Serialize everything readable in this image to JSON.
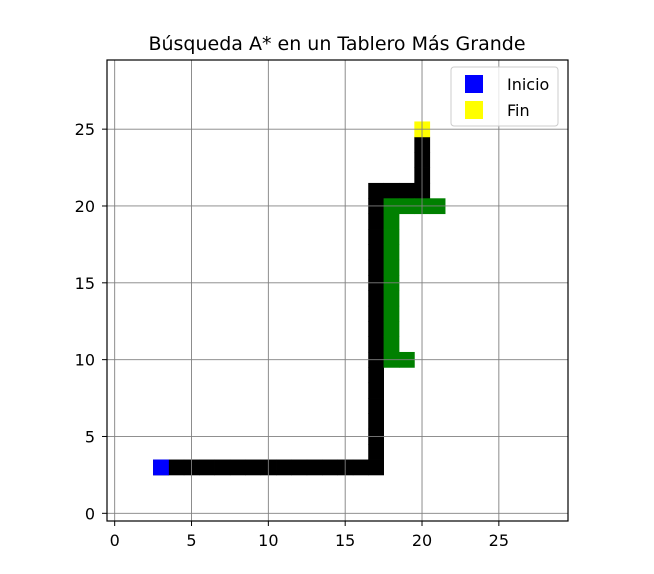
{
  "chart_data": {
    "type": "heatmap",
    "title": "Búsqueda A* en un Tablero Más Grande",
    "xlabel": "",
    "ylabel": "",
    "xlim": [
      -0.5,
      29.5
    ],
    "ylim": [
      29.5,
      -0.5
    ],
    "y_inverted": true,
    "grid": true,
    "legend_position": "upper-right",
    "x_ticks": [
      0,
      5,
      10,
      15,
      20,
      25
    ],
    "y_ticks": [
      0,
      5,
      10,
      15,
      20,
      25
    ],
    "x_tick_labels": [
      "0",
      "5",
      "10",
      "15",
      "20",
      "25"
    ],
    "y_tick_labels": [
      "0",
      "5",
      "10",
      "15",
      "20",
      "25"
    ],
    "colors": {
      "obstacle": "#000000",
      "explored": "#008000",
      "start": "#0000ff",
      "end": "#ffff00",
      "grid": "#808080"
    },
    "obstacle_cells": [
      [
        3,
        3
      ],
      [
        3,
        4
      ],
      [
        3,
        5
      ],
      [
        3,
        6
      ],
      [
        3,
        7
      ],
      [
        3,
        8
      ],
      [
        3,
        9
      ],
      [
        3,
        10
      ],
      [
        3,
        11
      ],
      [
        3,
        12
      ],
      [
        3,
        13
      ],
      [
        3,
        14
      ],
      [
        3,
        15
      ],
      [
        3,
        16
      ],
      [
        3,
        17
      ],
      [
        4,
        17
      ],
      [
        5,
        17
      ],
      [
        6,
        17
      ],
      [
        7,
        17
      ],
      [
        8,
        17
      ],
      [
        9,
        17
      ],
      [
        10,
        17
      ],
      [
        11,
        17
      ],
      [
        12,
        17
      ],
      [
        13,
        17
      ],
      [
        14,
        17
      ],
      [
        15,
        17
      ],
      [
        16,
        17
      ],
      [
        17,
        17
      ],
      [
        18,
        17
      ],
      [
        19,
        17
      ],
      [
        20,
        17
      ],
      [
        21,
        17
      ],
      [
        21,
        18
      ],
      [
        21,
        19
      ],
      [
        21,
        20
      ],
      [
        22,
        20
      ],
      [
        23,
        20
      ],
      [
        24,
        20
      ]
    ],
    "explored_cells": [
      [
        10,
        18
      ],
      [
        10,
        19
      ],
      [
        11,
        18
      ],
      [
        12,
        18
      ],
      [
        13,
        18
      ],
      [
        14,
        18
      ],
      [
        15,
        18
      ],
      [
        16,
        18
      ],
      [
        17,
        18
      ],
      [
        18,
        18
      ],
      [
        19,
        18
      ],
      [
        20,
        18
      ],
      [
        20,
        19
      ],
      [
        20,
        20
      ],
      [
        20,
        21
      ]
    ],
    "start": {
      "row": 3,
      "col": 3
    },
    "end": {
      "row": 25,
      "col": 20
    },
    "legend": [
      {
        "label": "Inicio",
        "color": "#0000ff"
      },
      {
        "label": "Fin",
        "color": "#ffff00"
      }
    ]
  }
}
